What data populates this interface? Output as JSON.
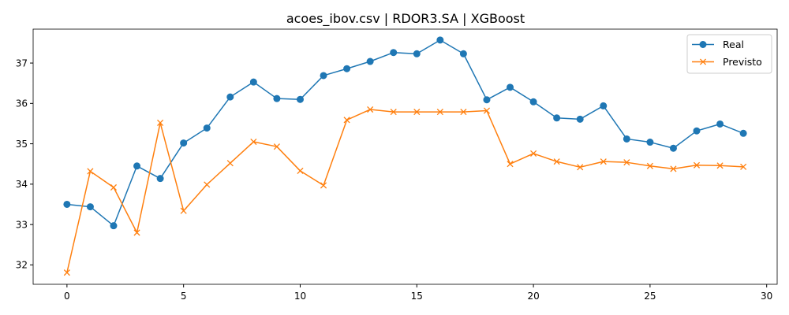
{
  "chart_data": {
    "type": "line",
    "title": "acoes_ibov.csv | RDOR3.SA | XGBoost",
    "xlabel": "",
    "ylabel": "",
    "x": [
      0,
      1,
      2,
      3,
      4,
      5,
      6,
      7,
      8,
      9,
      10,
      11,
      12,
      13,
      14,
      15,
      16,
      17,
      18,
      19,
      20,
      21,
      22,
      23,
      24,
      25,
      26,
      27,
      28,
      29
    ],
    "xlim": [
      -1.45,
      30.45
    ],
    "ylim": [
      31.52,
      37.84
    ],
    "xticks": [
      0,
      5,
      10,
      15,
      20,
      25,
      30
    ],
    "yticks": [
      32,
      33,
      34,
      35,
      36,
      37
    ],
    "grid": false,
    "legend_position": "top-right",
    "series": [
      {
        "name": "Real",
        "color": "#1f77b4",
        "marker": "circle",
        "values": [
          33.5,
          33.44,
          32.97,
          34.45,
          34.14,
          35.02,
          35.39,
          36.16,
          36.53,
          36.12,
          36.1,
          36.69,
          36.86,
          37.04,
          37.26,
          37.23,
          37.57,
          37.23,
          36.09,
          36.4,
          36.04,
          35.64,
          35.61,
          35.94,
          35.12,
          35.04,
          34.89,
          35.32,
          35.49,
          35.26
        ]
      },
      {
        "name": "Previsto",
        "color": "#ff7f0e",
        "marker": "x",
        "values": [
          31.81,
          34.32,
          33.92,
          32.8,
          35.52,
          33.34,
          33.99,
          34.52,
          35.05,
          34.93,
          34.33,
          33.97,
          35.59,
          35.85,
          35.79,
          35.79,
          35.79,
          35.79,
          35.82,
          34.5,
          34.76,
          34.56,
          34.42,
          34.56,
          34.54,
          34.45,
          34.38,
          34.47,
          34.46,
          34.43
        ]
      }
    ]
  }
}
